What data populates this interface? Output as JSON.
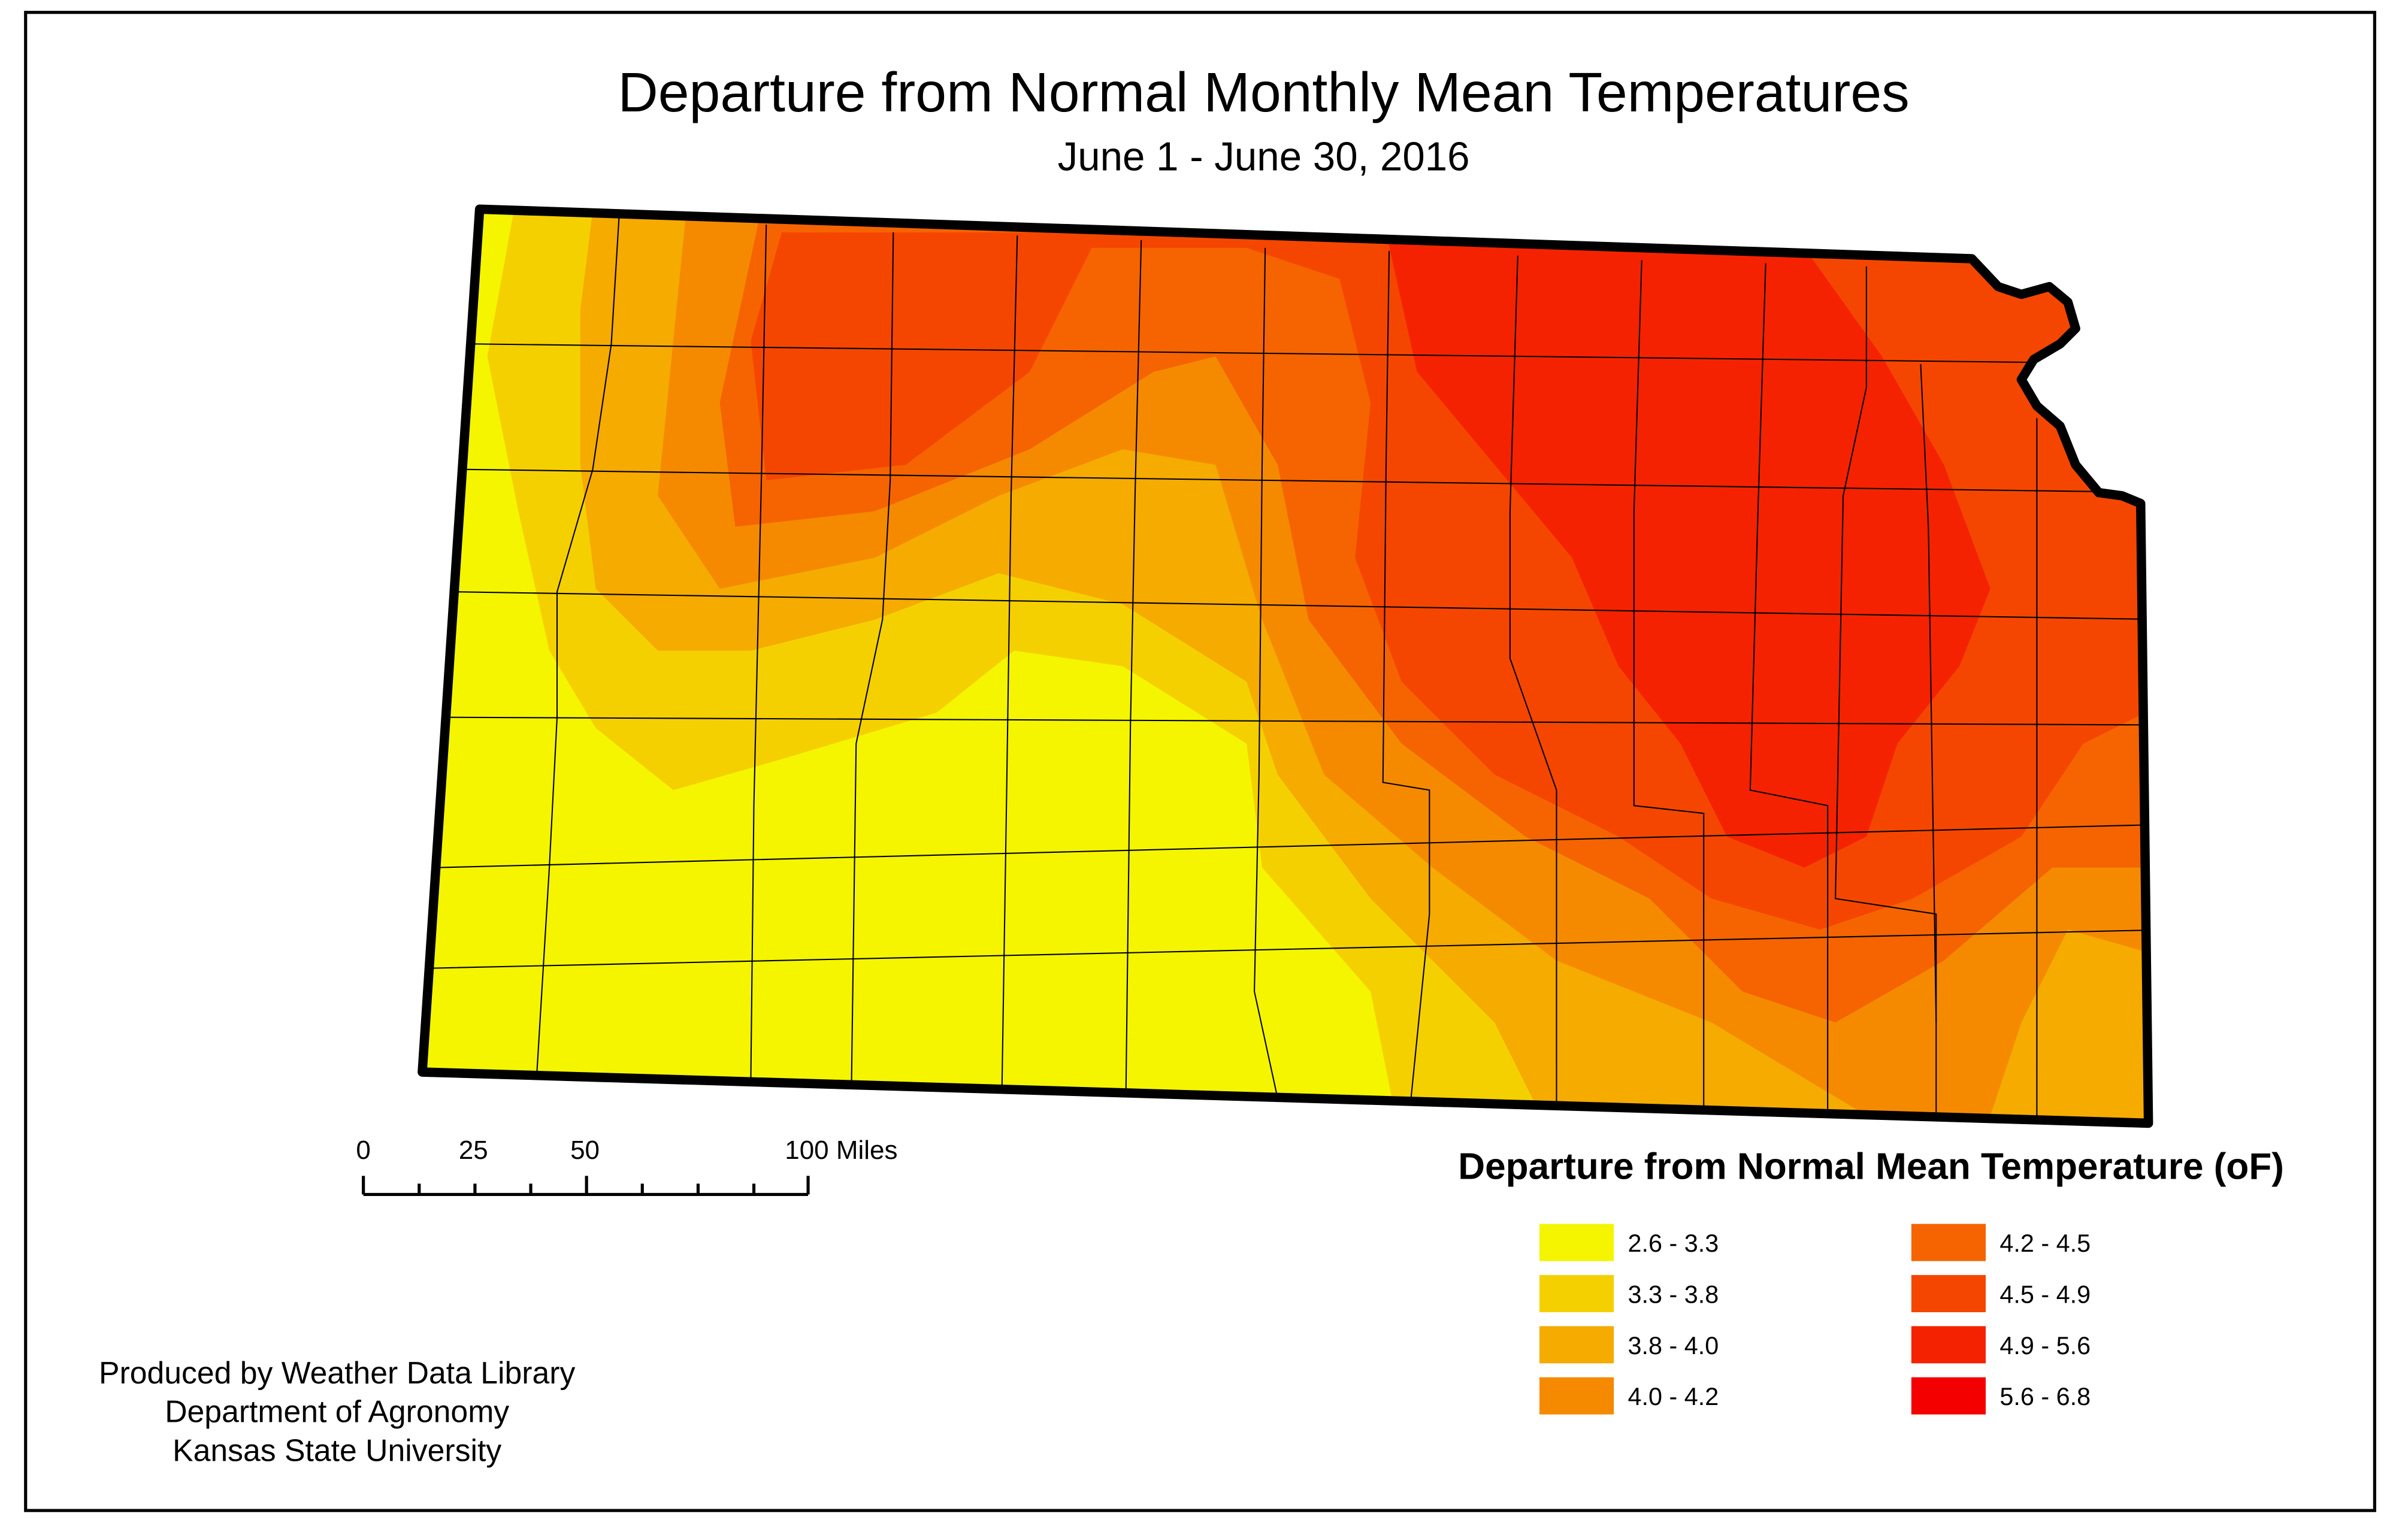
{
  "title": "Departure from Normal Monthly Mean Temperatures",
  "subtitle": "June 1 - June 30, 2016",
  "scale_bar": {
    "labels": [
      "0",
      "25",
      "50",
      "100 Miles"
    ]
  },
  "legend": {
    "title": "Departure from Normal Mean Temperature (oF)",
    "classes": [
      {
        "label": "2.6 - 3.3",
        "color": "#f5f500"
      },
      {
        "label": "3.3 - 3.8",
        "color": "#f5d000"
      },
      {
        "label": "3.8 - 4.0",
        "color": "#f5ab00"
      },
      {
        "label": "4.0 - 4.2",
        "color": "#f58a00"
      },
      {
        "label": "4.2 - 4.5",
        "color": "#f56400"
      },
      {
        "label": "4.5 - 4.9",
        "color": "#f54600"
      },
      {
        "label": "4.9 - 5.6",
        "color": "#f52200"
      },
      {
        "label": "5.6 - 6.8",
        "color": "#f50000"
      }
    ]
  },
  "credits": [
    "Produced by Weather Data Library",
    "Department of Agronomy",
    "Kansas State University"
  ]
}
